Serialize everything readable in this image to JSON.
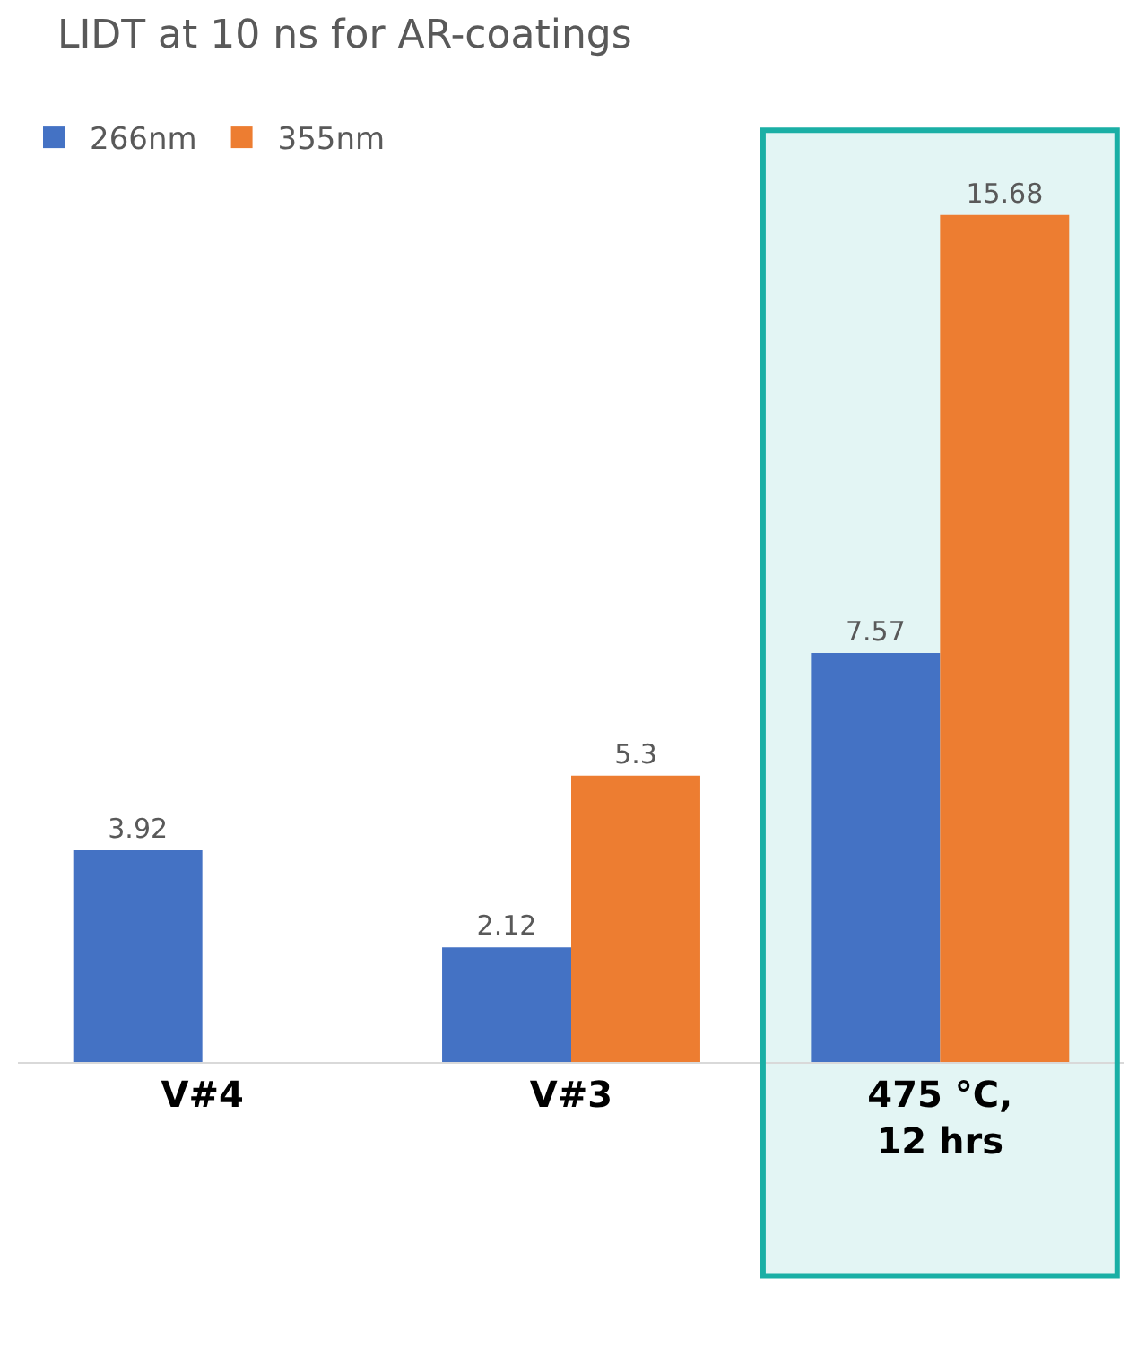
{
  "chart_data": {
    "type": "bar",
    "title": "LIDT at 10 ns for AR-coatings",
    "categories": [
      "V#4",
      "V#3",
      "475 °C,\n12 hrs"
    ],
    "series": [
      {
        "name": "266nm",
        "color": "#4472c4",
        "values": [
          3.92,
          2.12,
          7.57
        ]
      },
      {
        "name": "355nm",
        "color": "#ed7d31",
        "values": [
          null,
          5.3,
          15.68
        ]
      }
    ],
    "data_labels": true,
    "legend": "top left",
    "grid": false,
    "bands": [
      {
        "axis": "x",
        "from": "475 °C,\n12 hrs",
        "to": "475 °C,\n12 hrs",
        "color": "#1aafa5"
      }
    ]
  }
}
